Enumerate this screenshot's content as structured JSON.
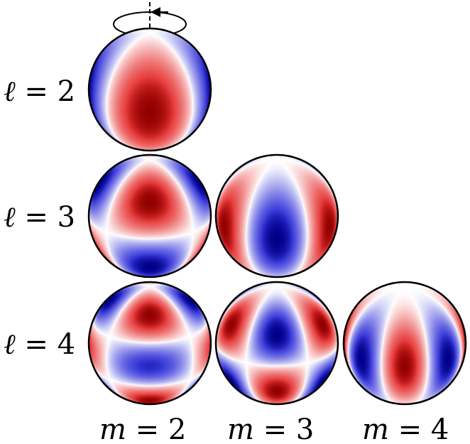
{
  "row_labels": [
    {
      "var": "ℓ",
      "rest": " = 2"
    },
    {
      "var": "ℓ",
      "rest": " = 3"
    },
    {
      "var": "ℓ",
      "rest": " = 4"
    }
  ],
  "col_labels": [
    {
      "var": "m",
      "rest": " = 2"
    },
    {
      "var": "m",
      "rest": " = 3"
    },
    {
      "var": "m",
      "rest": " = 4"
    }
  ],
  "colors": {
    "positive": "#e00000",
    "negative": "#0000d0",
    "zero": "#ffffff",
    "outline": "#000000"
  },
  "rotation_indicator": {
    "shown": true,
    "direction": "counterclockwise"
  },
  "spheres": [
    {
      "l": 2,
      "m": 2,
      "row": 0,
      "col": 0
    },
    {
      "l": 3,
      "m": 2,
      "row": 1,
      "col": 0
    },
    {
      "l": 3,
      "m": 3,
      "row": 1,
      "col": 1
    },
    {
      "l": 4,
      "m": 2,
      "row": 2,
      "col": 0
    },
    {
      "l": 4,
      "m": 3,
      "row": 2,
      "col": 1
    },
    {
      "l": 4,
      "m": 4,
      "row": 2,
      "col": 2
    }
  ]
}
